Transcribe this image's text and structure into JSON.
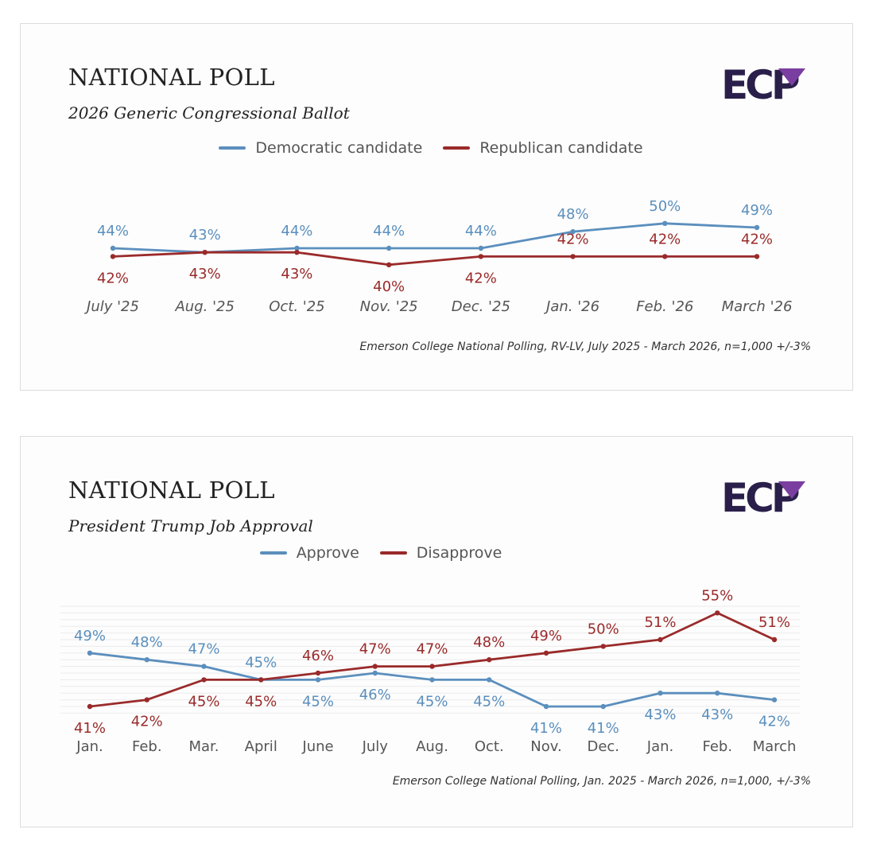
{
  "colors": {
    "blue": "#5b8fbd",
    "red": "#9a2a2a",
    "logo": "#2a1f4a",
    "logo_accent": "#7a3ea0"
  },
  "logo_text": "ECP",
  "panels": [
    {
      "title": "NATIONAL POLL",
      "subtitle": "2026 Generic Congressional Ballot",
      "legend": [
        "Democratic candidate",
        "Republican candidate"
      ],
      "source": "Emerson College National Polling, RV-LV, July 2025 - March 2026, n=1,000 +/-3%"
    },
    {
      "title": "NATIONAL POLL",
      "subtitle": "President Trump Job Approval",
      "legend": [
        "Approve",
        "Disapprove"
      ],
      "source": "Emerson College National Polling, Jan. 2025 - March 2026, n=1,000, +/-3%"
    }
  ],
  "chart_data": [
    {
      "type": "line",
      "title": "2026 Generic Congressional Ballot",
      "categories": [
        "July '25",
        "Aug. '25",
        "Oct. '25",
        "Nov. '25",
        "Dec. '25",
        "Jan. '26",
        "Feb. '26",
        "March '26"
      ],
      "series": [
        {
          "name": "Democratic candidate",
          "color": "#5b8fbd",
          "values": [
            44,
            43,
            44,
            44,
            44,
            48,
            50,
            49
          ]
        },
        {
          "name": "Republican candidate",
          "color": "#9a2a2a",
          "values": [
            42,
            43,
            43,
            40,
            42,
            42,
            42,
            42
          ]
        }
      ],
      "legend": "top-center",
      "grid": false
    },
    {
      "type": "line",
      "title": "President Trump Job Approval",
      "categories": [
        "Jan.",
        "Feb.",
        "Mar.",
        "April",
        "June",
        "July",
        "Aug.",
        "Oct.",
        "Nov.",
        "Dec.",
        "Jan.",
        "Feb.",
        "March"
      ],
      "series": [
        {
          "name": "Approve",
          "color": "#5b8fbd",
          "values": [
            49,
            48,
            47,
            45,
            45,
            46,
            45,
            45,
            41,
            41,
            43,
            43,
            42
          ]
        },
        {
          "name": "Disapprove",
          "color": "#9a2a2a",
          "values": [
            41,
            42,
            45,
            45,
            46,
            47,
            47,
            48,
            49,
            50,
            51,
            55,
            51
          ]
        }
      ],
      "legend": "top-center",
      "grid": true
    }
  ]
}
